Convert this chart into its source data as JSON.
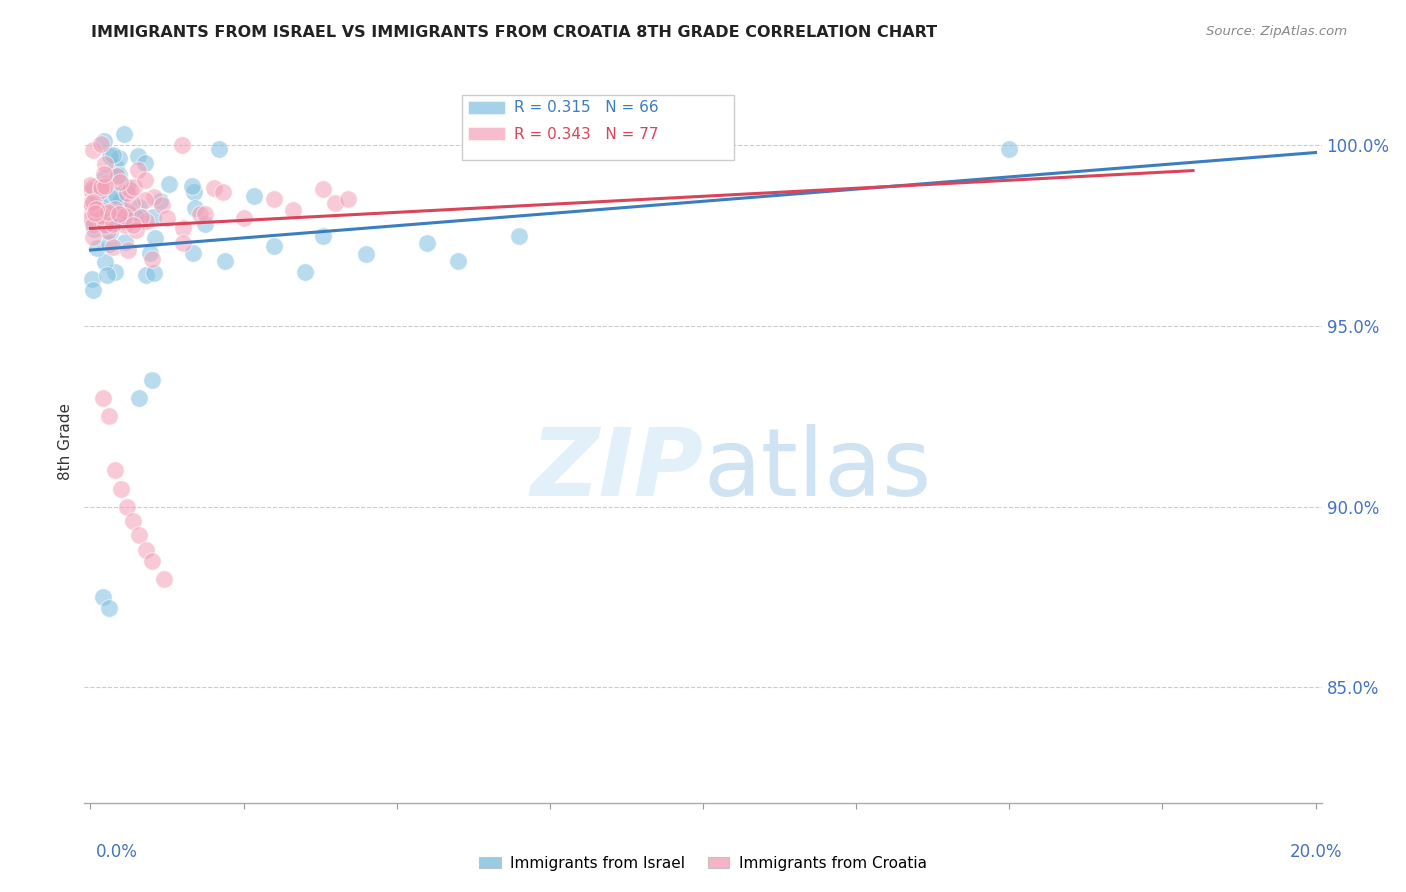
{
  "title": "IMMIGRANTS FROM ISRAEL VS IMMIGRANTS FROM CROATIA 8TH GRADE CORRELATION CHART",
  "source": "Source: ZipAtlas.com",
  "ylabel": "8th Grade",
  "yaxis_labels": [
    "85.0%",
    "90.0%",
    "95.0%",
    "100.0%"
  ],
  "yaxis_values": [
    0.85,
    0.9,
    0.95,
    1.0
  ],
  "legend_israel_r": "0.315",
  "legend_israel_n": "66",
  "legend_croatia_r": "0.343",
  "legend_croatia_n": "77",
  "israel_color": "#7fbfdf",
  "croatia_color": "#f4a0b8",
  "israel_line_color": "#3a7ebf",
  "croatia_line_color": "#d9445a",
  "background_color": "#ffffff",
  "xlim": [
    -0.001,
    0.201
  ],
  "ylim": [
    0.818,
    1.018
  ],
  "israel_trendline_x": [
    0.0,
    0.2
  ],
  "israel_trendline_y": [
    0.971,
    0.998
  ],
  "croatia_trendline_x": [
    0.0,
    0.18
  ],
  "croatia_trendline_y": [
    0.977,
    0.993
  ]
}
